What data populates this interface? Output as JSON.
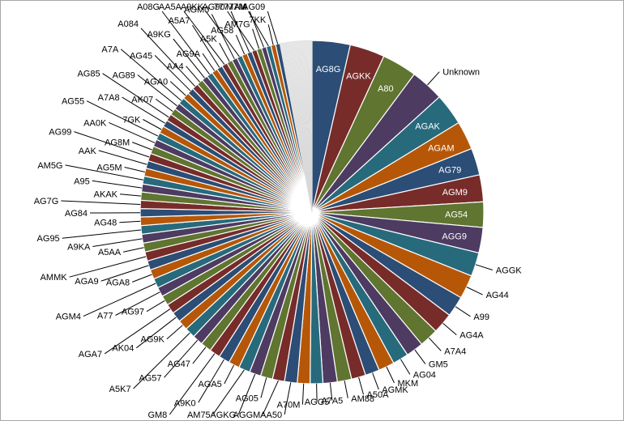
{
  "chart_data": {
    "type": "pie",
    "title": "",
    "legend": "none",
    "start_angle_deg": 0,
    "direction": "clockwise",
    "palette": [
      "#2c4d75",
      "#772c2a",
      "#5f7530",
      "#4d3b62",
      "#276a7c",
      "#b65708"
    ],
    "tail_color": "#f3f3f3",
    "slices": [
      {
        "label": "AG8G",
        "value": 12.0,
        "label_side": "inside"
      },
      {
        "label": "AGKK",
        "value": 11.0,
        "label_side": "inside"
      },
      {
        "label": "A80",
        "value": 11.0,
        "label_side": "inside"
      },
      {
        "label": "Unknown",
        "value": 10.5,
        "label_side": "outside"
      },
      {
        "label": "AGAK",
        "value": 10.0,
        "label_side": "inside"
      },
      {
        "label": "AGAM",
        "value": 9.0,
        "label_side": "inside"
      },
      {
        "label": "AG79",
        "value": 8.5,
        "label_side": "inside"
      },
      {
        "label": "AGM9",
        "value": 8.5,
        "label_side": "inside"
      },
      {
        "label": "AG54",
        "value": 8.0,
        "label_side": "inside"
      },
      {
        "label": "AGG9",
        "value": 8.0,
        "label_side": "inside"
      },
      {
        "label": "AGGK",
        "value": 7.5,
        "label_side": "outside"
      },
      {
        "label": "AG44",
        "value": 7.5,
        "label_side": "outside"
      },
      {
        "label": "A99",
        "value": 6.5,
        "label_side": "outside"
      },
      {
        "label": "AG4A",
        "value": 6.5,
        "label_side": "outside"
      },
      {
        "label": "A7A4",
        "value": 6.0,
        "label_side": "outside"
      },
      {
        "label": "GM5",
        "value": 5.5,
        "label_side": "outside"
      },
      {
        "label": "AG04",
        "value": 5.0,
        "label_side": "outside"
      },
      {
        "label": "MKM",
        "value": 5.0,
        "label_side": "outside"
      },
      {
        "label": "AGMK",
        "value": 4.5,
        "label_side": "outside"
      },
      {
        "label": "A50A",
        "value": 4.5,
        "label_side": "outside"
      },
      {
        "label": "AM88",
        "value": 4.5,
        "label_side": "outside"
      },
      {
        "label": "A7A5",
        "value": 4.5,
        "label_side": "outside"
      },
      {
        "label": "AGG5",
        "value": 4.0,
        "label_side": "outside"
      },
      {
        "label": "A70M",
        "value": 4.0,
        "label_side": "outside"
      },
      {
        "label": "AA50",
        "value": 4.0,
        "label_side": "outside"
      },
      {
        "label": "AGGM",
        "value": 3.8,
        "label_side": "outside"
      },
      {
        "label": "AG05",
        "value": 3.8,
        "label_side": "outside"
      },
      {
        "label": "AGKG",
        "value": 3.6,
        "label_side": "outside"
      },
      {
        "label": "AM75",
        "value": 3.6,
        "label_side": "outside"
      },
      {
        "label": "AGA5",
        "value": 3.5,
        "label_side": "outside"
      },
      {
        "label": "A9K0",
        "value": 3.5,
        "label_side": "outside"
      },
      {
        "label": "GM8",
        "value": 3.4,
        "label_side": "outside"
      },
      {
        "label": "AG47",
        "value": 3.4,
        "label_side": "outside"
      },
      {
        "label": "AG57",
        "value": 3.3,
        "label_side": "outside"
      },
      {
        "label": "A5K7",
        "value": 3.3,
        "label_side": "outside"
      },
      {
        "label": "AG9K",
        "value": 3.2,
        "label_side": "outside"
      },
      {
        "label": "AK04",
        "value": 3.2,
        "label_side": "outside"
      },
      {
        "label": "AGA7",
        "value": 3.1,
        "label_side": "outside"
      },
      {
        "label": "AG97",
        "value": 3.1,
        "label_side": "outside"
      },
      {
        "label": "A77",
        "value": 3.0,
        "label_side": "outside"
      },
      {
        "label": "AGM4",
        "value": 3.0,
        "label_side": "outside"
      },
      {
        "label": "AGA8",
        "value": 3.0,
        "label_side": "outside"
      },
      {
        "label": "AGA9",
        "value": 2.9,
        "label_side": "outside"
      },
      {
        "label": "AMMK",
        "value": 2.9,
        "label_side": "outside"
      },
      {
        "label": "A5AA",
        "value": 2.8,
        "label_side": "outside"
      },
      {
        "label": "A9KA",
        "value": 2.8,
        "label_side": "outside"
      },
      {
        "label": "AG95",
        "value": 2.7,
        "label_side": "outside"
      },
      {
        "label": "AG48",
        "value": 2.7,
        "label_side": "outside"
      },
      {
        "label": "AG84",
        "value": 2.6,
        "label_side": "outside"
      },
      {
        "label": "AG7G",
        "value": 2.6,
        "label_side": "outside"
      },
      {
        "label": "AKAK",
        "value": 2.6,
        "label_side": "outside"
      },
      {
        "label": "A95",
        "value": 2.5,
        "label_side": "outside"
      },
      {
        "label": "AM5G",
        "value": 2.5,
        "label_side": "outside"
      },
      {
        "label": "AG5M",
        "value": 2.5,
        "label_side": "outside"
      },
      {
        "label": "AAK",
        "value": 2.4,
        "label_side": "outside"
      },
      {
        "label": "AG99",
        "value": 2.4,
        "label_side": "outside"
      },
      {
        "label": "AG8M",
        "value": 2.4,
        "label_side": "outside"
      },
      {
        "label": "AA0K",
        "value": 2.3,
        "label_side": "outside"
      },
      {
        "label": "AG55",
        "value": 2.3,
        "label_side": "outside"
      },
      {
        "label": "7GK",
        "value": 2.3,
        "label_side": "outside"
      },
      {
        "label": "A7A8",
        "value": 2.2,
        "label_side": "outside"
      },
      {
        "label": "AG85",
        "value": 2.2,
        "label_side": "outside"
      },
      {
        "label": "AK07",
        "value": 2.2,
        "label_side": "outside"
      },
      {
        "label": "AG89",
        "value": 2.1,
        "label_side": "outside"
      },
      {
        "label": "A7A",
        "value": 2.1,
        "label_side": "outside"
      },
      {
        "label": "AGA0",
        "value": 2.1,
        "label_side": "outside"
      },
      {
        "label": "AG45",
        "value": 2.0,
        "label_side": "outside"
      },
      {
        "label": "A084",
        "value": 2.0,
        "label_side": "outside"
      },
      {
        "label": "AA4",
        "value": 2.0,
        "label_side": "outside"
      },
      {
        "label": "A9KG",
        "value": 1.9,
        "label_side": "outside"
      },
      {
        "label": "A08G",
        "value": 1.9,
        "label_side": "outside"
      },
      {
        "label": "AG9A",
        "value": 1.9,
        "label_side": "outside"
      },
      {
        "label": "A5A7",
        "value": 1.8,
        "label_side": "outside"
      },
      {
        "label": "AA5A",
        "value": 1.8,
        "label_side": "outside"
      },
      {
        "label": "A5K",
        "value": 1.8,
        "label_side": "outside"
      },
      {
        "label": "AGM0",
        "value": 1.7,
        "label_side": "outside"
      },
      {
        "label": "A9KK",
        "value": 1.7,
        "label_side": "outside"
      },
      {
        "label": "AG58",
        "value": 1.7,
        "label_side": "outside"
      },
      {
        "label": "777",
        "value": 1.6,
        "label_side": "outside"
      },
      {
        "label": "AG90",
        "value": 1.6,
        "label_side": "outside"
      },
      {
        "label": "AM7G",
        "value": 1.6,
        "label_side": "outside"
      },
      {
        "label": "7AM",
        "value": 1.5,
        "label_side": "outside"
      },
      {
        "label": "M7M",
        "value": 1.5,
        "label_side": "outside"
      },
      {
        "label": "7KK",
        "value": 1.5,
        "label_side": "outside"
      },
      {
        "label": "AG09",
        "value": 1.4,
        "label_side": "outside"
      }
    ],
    "tail_value": 10.0
  }
}
